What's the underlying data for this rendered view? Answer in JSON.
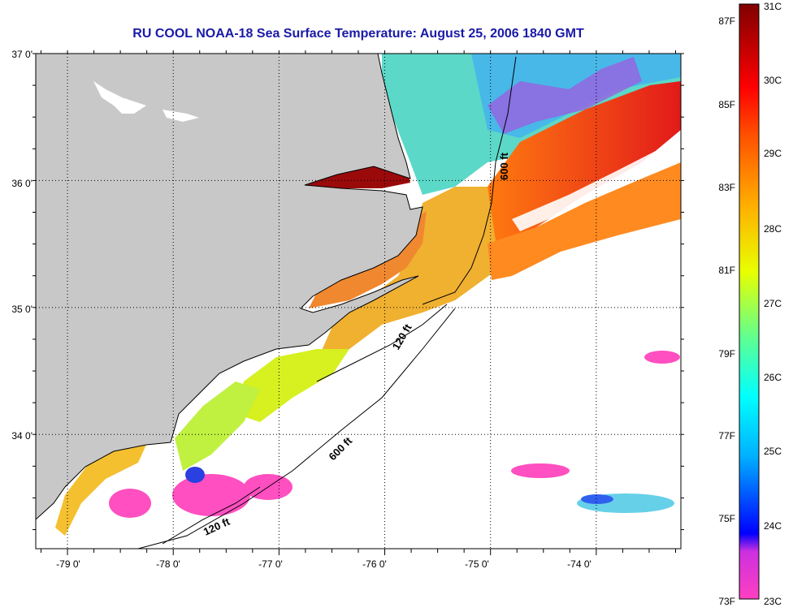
{
  "title": "RU COOL  NOAA-18  Sea Surface Temperature:  August 25, 2006 1840 GMT",
  "map": {
    "lat_labels": [
      "37 0'",
      "36 0'",
      "35 0'",
      "34 0'"
    ],
    "lon_labels": [
      "-79 0'",
      "-78 0'",
      "-77 0'",
      "-76 0'",
      "-75 0'",
      "-74 0'"
    ],
    "contours": [
      {
        "label": "600 ft",
        "depth_ft": 600
      },
      {
        "label": "120 ft",
        "depth_ft": 120
      },
      {
        "label": "600 ft",
        "depth_ft": 600
      },
      {
        "label": "120 ft",
        "depth_ft": 120
      }
    ],
    "extent": {
      "lat": [
        33.1,
        37.0
      ],
      "lon": [
        -79.3,
        -73.2
      ]
    },
    "grid": true
  },
  "colorbar": {
    "fahrenheit": [
      "87F",
      "85F",
      "83F",
      "81F",
      "79F",
      "77F",
      "75F",
      "73F"
    ],
    "celsius": [
      "31C",
      "30C",
      "29C",
      "28C",
      "27C",
      "26C",
      "25C",
      "24C",
      "23C"
    ]
  },
  "colors": {
    "title": "#1a1aa8",
    "land": "#c8c8c8",
    "cloud_no_data": "#ffffff"
  }
}
